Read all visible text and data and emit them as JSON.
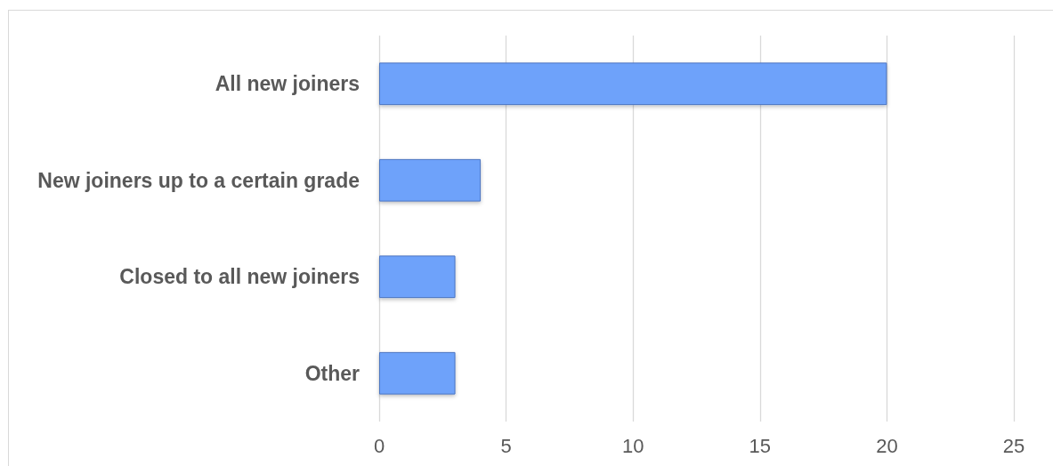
{
  "chart_data": {
    "type": "bar",
    "orientation": "horizontal",
    "categories": [
      "All new joiners",
      "New joiners up to a certain grade",
      "Closed to all new joiners",
      "Other"
    ],
    "values": [
      20,
      4,
      3,
      3
    ],
    "color": "#6ea2fa",
    "xlim": [
      0,
      25
    ],
    "xticks": [
      0,
      5,
      10,
      15,
      20,
      25
    ],
    "grid": "x"
  }
}
